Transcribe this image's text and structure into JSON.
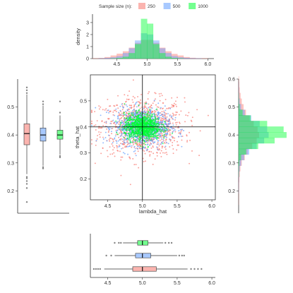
{
  "chart_data": [
    {
      "panel": "top-histogram",
      "type": "bar",
      "ylabel": "density",
      "xlim": [
        4.1,
        6.1
      ],
      "ylim": [
        0,
        3.7
      ],
      "xticks": [
        "4.5",
        "5.0",
        "5.5",
        "6.0"
      ],
      "yticks": [
        "0",
        "1",
        "2",
        "3"
      ],
      "bin_starts": [
        4.1,
        4.2,
        4.3,
        4.4,
        4.5,
        4.6,
        4.7,
        4.8,
        4.9,
        5.0,
        5.1,
        5.2,
        5.3,
        5.4,
        5.5,
        5.6,
        5.7,
        5.8,
        5.9
      ],
      "bin_width": 0.1,
      "series": [
        {
          "name": "250",
          "color": "#F8766D",
          "values": [
            0.02,
            0.05,
            0.12,
            0.25,
            0.4,
            0.6,
            0.9,
            1.3,
            1.55,
            1.55,
            1.3,
            0.9,
            0.6,
            0.38,
            0.25,
            0.12,
            0.06,
            0.03,
            0.02
          ]
        },
        {
          "name": "500",
          "color": "#619CFF",
          "values": [
            0.0,
            0.01,
            0.05,
            0.1,
            0.2,
            0.45,
            0.85,
            1.5,
            2.1,
            2.0,
            1.5,
            0.85,
            0.45,
            0.2,
            0.1,
            0.05,
            0.02,
            0.01,
            0.0
          ]
        },
        {
          "name": "1000",
          "color": "#00FF33",
          "values": [
            0.0,
            0.0,
            0.0,
            0.01,
            0.05,
            0.15,
            0.45,
            1.2,
            3.3,
            2.9,
            1.2,
            0.45,
            0.15,
            0.05,
            0.01,
            0.0,
            0.0,
            0.0,
            0.0
          ]
        }
      ]
    },
    {
      "panel": "scatter",
      "type": "scatter",
      "xlabel": "lambda_hat",
      "ylabel": "theta_hat",
      "xlim": [
        4.25,
        6.05
      ],
      "ylim": [
        0.12,
        0.6
      ],
      "xticks": [
        "4.5",
        "5.0",
        "5.5",
        "6.0"
      ],
      "yticks": [
        "0.2",
        "0.3",
        "0.4",
        "0.5"
      ],
      "reference_lines": {
        "x": 5.0,
        "y": 0.4
      },
      "series": [
        {
          "name": "250",
          "color": "#F8766D",
          "x_mean": 5.0,
          "x_sd": 0.3,
          "y_mean": 0.4,
          "y_sd": 0.055,
          "n": 1000
        },
        {
          "name": "500",
          "color": "#619CFF",
          "x_mean": 5.0,
          "x_sd": 0.2,
          "y_mean": 0.4,
          "y_sd": 0.035,
          "n": 1000
        },
        {
          "name": "1000",
          "color": "#00FF33",
          "x_mean": 5.0,
          "x_sd": 0.13,
          "y_mean": 0.4,
          "y_sd": 0.025,
          "n": 1000
        }
      ]
    },
    {
      "panel": "right-histogram",
      "type": "bar",
      "orientation": "horizontal",
      "ylim": [
        0.12,
        0.6
      ],
      "yticks": [
        "0.2",
        "0.3",
        "0.4",
        "0.5",
        "0.6"
      ],
      "bin_starts": [
        0.15,
        0.17,
        0.19,
        0.21,
        0.23,
        0.25,
        0.27,
        0.29,
        0.31,
        0.33,
        0.35,
        0.37,
        0.39,
        0.41,
        0.43,
        0.45,
        0.47,
        0.49,
        0.51,
        0.53,
        0.55,
        0.57,
        0.59
      ],
      "bin_width": 0.02,
      "series": [
        {
          "name": "250",
          "color": "#F8766D",
          "values": [
            0.03,
            0.05,
            0.08,
            0.12,
            0.2,
            0.35,
            0.55,
            1.0,
            2.0,
            3.0,
            4.5,
            6.0,
            6.8,
            6.3,
            5.0,
            3.6,
            2.4,
            1.6,
            1.0,
            0.6,
            0.3,
            0.15,
            0.08
          ]
        },
        {
          "name": "500",
          "color": "#619CFF",
          "values": [
            0.0,
            0.0,
            0.01,
            0.02,
            0.05,
            0.12,
            0.3,
            0.8,
            1.8,
            3.5,
            6.0,
            8.5,
            10.0,
            9.5,
            7.0,
            4.2,
            2.0,
            0.8,
            0.3,
            0.1,
            0.03,
            0.01,
            0.0
          ]
        },
        {
          "name": "1000",
          "color": "#00FF33",
          "values": [
            0.0,
            0.0,
            0.0,
            0.0,
            0.0,
            0.02,
            0.05,
            0.2,
            0.8,
            2.5,
            6.5,
            12.0,
            16.0,
            15.0,
            9.5,
            4.0,
            1.3,
            0.3,
            0.05,
            0.01,
            0.0,
            0.0,
            0.0
          ]
        }
      ]
    },
    {
      "panel": "left-boxplot",
      "type": "box",
      "orientation": "vertical",
      "ylim": [
        0.12,
        0.6
      ],
      "yticks": [
        "0.2",
        "0.3",
        "0.4",
        "0.5"
      ],
      "boxes": [
        {
          "name": "250",
          "color": "#F8766D",
          "q1": 0.365,
          "median": 0.405,
          "q3": 0.44,
          "whisker_low": 0.26,
          "whisker_high": 0.545,
          "outliers": [
            0.16,
            0.21,
            0.225,
            0.235,
            0.245,
            0.25,
            0.55,
            0.56,
            0.57
          ]
        },
        {
          "name": "500",
          "color": "#619CFF",
          "q1": 0.378,
          "median": 0.4,
          "q3": 0.425,
          "whisker_low": 0.29,
          "whisker_high": 0.505,
          "outliers": [
            0.28,
            0.285,
            0.51,
            0.52
          ]
        },
        {
          "name": "1000",
          "color": "#00FF33",
          "q1": 0.385,
          "median": 0.4,
          "q3": 0.417,
          "whisker_low": 0.33,
          "whisker_high": 0.47,
          "outliers": [
            0.32,
            0.325,
            0.48,
            0.52
          ]
        }
      ]
    },
    {
      "panel": "bottom-boxplot",
      "type": "box",
      "orientation": "horizontal",
      "xlim": [
        4.25,
        6.05
      ],
      "xticks": [
        "4.5",
        "5.0",
        "5.5",
        "6.0"
      ],
      "boxes": [
        {
          "name": "1000",
          "color": "#00FF33",
          "q1": 4.93,
          "median": 5.0,
          "q3": 5.08,
          "whisker_low": 4.72,
          "whisker_high": 5.3,
          "outliers": [
            4.6,
            4.66,
            4.69,
            5.33,
            5.38,
            5.42
          ]
        },
        {
          "name": "500",
          "color": "#619CFF",
          "q1": 4.9,
          "median": 5.0,
          "q3": 5.12,
          "whisker_low": 4.6,
          "whisker_high": 5.5,
          "outliers": [
            4.48,
            4.55,
            5.53,
            5.57,
            5.6
          ]
        },
        {
          "name": "250",
          "color": "#F8766D",
          "q1": 4.86,
          "median": 5.0,
          "q3": 5.2,
          "whisker_low": 4.45,
          "whisker_high": 5.65,
          "outliers": [
            4.3,
            4.33,
            4.36,
            4.39,
            5.7,
            5.75,
            5.8,
            5.85
          ]
        }
      ]
    }
  ],
  "legend": {
    "title": "Sample size (n):",
    "placement": "top",
    "items": [
      {
        "label": "250",
        "color": "#F8766D"
      },
      {
        "label": "500",
        "color": "#619CFF"
      },
      {
        "label": "1000",
        "color": "#00FF33"
      }
    ]
  }
}
